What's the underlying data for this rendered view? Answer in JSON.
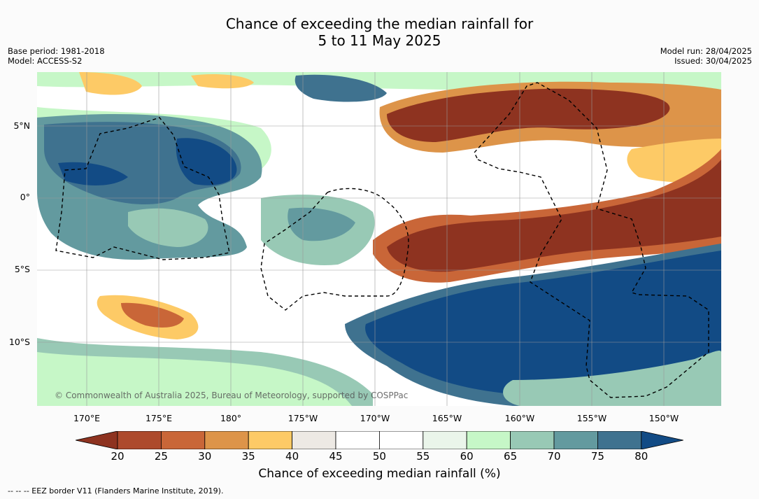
{
  "title_line1": "Chance of exceeding the median rainfall for",
  "title_line2": "5 to 11 May 2025",
  "meta_left": {
    "base_period": "Base period: 1981-2018",
    "model": "Model: ACCESS-S2"
  },
  "meta_right": {
    "model_run": "Model run: 28/04/2025",
    "issued": "Issued: 30/04/2025"
  },
  "lat_labels": [
    "5°N",
    "0°",
    "5°S",
    "10°S"
  ],
  "lon_labels": [
    "170°E",
    "175°E",
    "180°",
    "175°W",
    "170°W",
    "165°W",
    "160°W",
    "155°W",
    "150°W"
  ],
  "colorbar": {
    "ticks": [
      "20",
      "25",
      "30",
      "35",
      "40",
      "45",
      "50",
      "55",
      "60",
      "65",
      "70",
      "75",
      "80"
    ],
    "colors": [
      "#8e3320",
      "#ad4a2c",
      "#c96638",
      "#dd9449",
      "#fdca66",
      "#ede9e4",
      "#ffffff",
      "#ffffff",
      "#eaf5ea",
      "#c6f7c7",
      "#98c9b5",
      "#639a9f",
      "#3f728f",
      "#124b85"
    ],
    "title": "Chance of exceeding median rainfall (%)"
  },
  "copyright": "© Commonwealth of Australia 2025, Bureau of Meteorology, supported by COSPPac",
  "footnote": "-- -- -- EEZ border V11 (Flanders Marine Institute, 2019)."
}
